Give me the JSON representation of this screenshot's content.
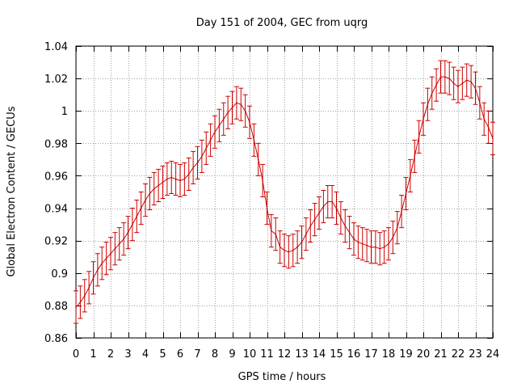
{
  "chart_data": {
    "type": "line",
    "title": "Day 151 of 2004, GEC from uqrg",
    "xlabel": "GPS time / hours",
    "ylabel": "Global Electron Content / GECUs",
    "xlim": [
      0,
      24
    ],
    "ylim": [
      0.86,
      1.04
    ],
    "grid": true,
    "x_ticks": [
      "0",
      "1",
      "2",
      "3",
      "4",
      "5",
      "6",
      "7",
      "8",
      "9",
      "10",
      "11",
      "12",
      "13",
      "14",
      "15",
      "16",
      "17",
      "18",
      "19",
      "20",
      "21",
      "22",
      "23",
      "24"
    ],
    "y_ticks": [
      "0.86",
      "0.88",
      "0.9",
      "0.92",
      "0.94",
      "0.96",
      "0.98",
      "1",
      "1.02",
      "1.04"
    ],
    "error_bar": 0.01,
    "series": [
      {
        "name": "GEC",
        "color": "#cc0000",
        "x": [
          0,
          0.25,
          0.5,
          0.75,
          1,
          1.25,
          1.5,
          1.75,
          2,
          2.25,
          2.5,
          2.75,
          3,
          3.25,
          3.5,
          3.75,
          4,
          4.25,
          4.5,
          4.75,
          5,
          5.25,
          5.5,
          5.75,
          6,
          6.25,
          6.5,
          6.75,
          7,
          7.25,
          7.5,
          7.75,
          8,
          8.25,
          8.5,
          8.75,
          9,
          9.25,
          9.5,
          9.75,
          10,
          10.25,
          10.5,
          10.75,
          11,
          11.25,
          11.5,
          11.75,
          12,
          12.25,
          12.5,
          12.75,
          13,
          13.25,
          13.5,
          13.75,
          14,
          14.25,
          14.5,
          14.75,
          15,
          15.25,
          15.5,
          15.75,
          16,
          16.25,
          16.5,
          16.75,
          17,
          17.25,
          17.5,
          17.75,
          18,
          18.25,
          18.5,
          18.75,
          19,
          19.25,
          19.5,
          19.75,
          20,
          20.25,
          20.5,
          20.75,
          21,
          21.25,
          21.5,
          21.75,
          22,
          22.25,
          22.5,
          22.75,
          23,
          23.25,
          23.5,
          23.75,
          24
        ],
        "y": [
          0.879,
          0.882,
          0.886,
          0.891,
          0.897,
          0.902,
          0.906,
          0.909,
          0.912,
          0.915,
          0.918,
          0.921,
          0.925,
          0.93,
          0.935,
          0.94,
          0.945,
          0.949,
          0.952,
          0.954,
          0.956,
          0.958,
          0.959,
          0.958,
          0.957,
          0.958,
          0.961,
          0.965,
          0.968,
          0.972,
          0.977,
          0.982,
          0.987,
          0.991,
          0.995,
          0.999,
          1.002,
          1.005,
          1.004,
          1.0,
          0.993,
          0.982,
          0.97,
          0.957,
          0.94,
          0.926,
          0.924,
          0.916,
          0.914,
          0.913,
          0.914,
          0.916,
          0.919,
          0.924,
          0.929,
          0.933,
          0.937,
          0.941,
          0.944,
          0.944,
          0.94,
          0.934,
          0.929,
          0.925,
          0.921,
          0.919,
          0.918,
          0.917,
          0.916,
          0.916,
          0.915,
          0.916,
          0.918,
          0.922,
          0.928,
          0.938,
          0.949,
          0.96,
          0.972,
          0.984,
          0.995,
          1.004,
          1.011,
          1.016,
          1.021,
          1.021,
          1.02,
          1.017,
          1.015,
          1.017,
          1.019,
          1.018,
          1.014,
          1.005,
          0.995,
          0.99,
          0.983
        ]
      }
    ]
  }
}
